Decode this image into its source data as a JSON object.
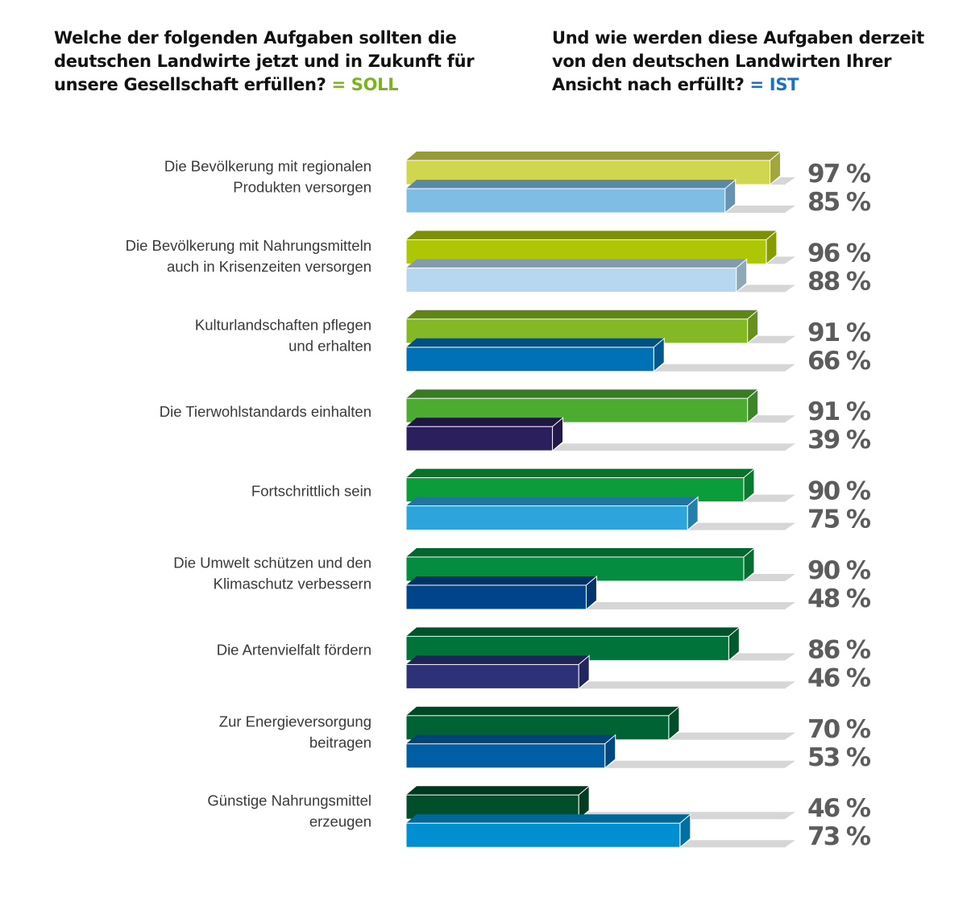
{
  "titles": {
    "left": {
      "text": "Welche der folgenden Aufgaben sollten die deutschen Landwirte jetzt und in Zukunft für unsere Gesellschaft erfüllen?",
      "tag": "= SOLL"
    },
    "right": {
      "text": "Und wie werden diese Aufgaben derzeit von den deutschen Landwirten Ihrer Ansicht nach erfüllt?",
      "tag": "= IST"
    }
  },
  "colors": {
    "soll_tag": "#7ab51d",
    "ist_tag": "#1a73c2",
    "value_label": "#5c5c5c",
    "shadow": "#d6d6d6"
  },
  "chart_data": {
    "type": "bar",
    "orientation": "horizontal",
    "title": "",
    "xlabel": "",
    "ylabel": "",
    "xlim": [
      0,
      100
    ],
    "unit": "%",
    "grid": false,
    "categories": [
      [
        "Die Bevölkerung mit regionalen",
        "Produkten versorgen"
      ],
      [
        "Die Bevölkerung mit Nahrungsmitteln",
        "auch in Krisenzeiten versorgen"
      ],
      [
        "Kulturlandschaften pflegen",
        "und erhalten"
      ],
      [
        "Die Tierwohlstandards einhalten"
      ],
      [
        "Fortschrittlich sein"
      ],
      [
        "Die Umwelt schützen und den",
        "Klimaschutz verbessern"
      ],
      [
        "Die Artenvielfalt fördern"
      ],
      [
        "Zur Energieversorgung",
        "beitragen"
      ],
      [
        "Günstige Nahrungsmittel",
        "erzeugen"
      ]
    ],
    "series": [
      {
        "name": "SOLL",
        "values": [
          97,
          96,
          91,
          91,
          90,
          90,
          86,
          70,
          46
        ],
        "labels": [
          "97 %",
          "96 %",
          "91 %",
          "91 %",
          "90 %",
          "90 %",
          "86 %",
          "70 %",
          "46 %"
        ],
        "colors": [
          "#d0d64e",
          "#adc705",
          "#84b824",
          "#4eab32",
          "#0c9d3b",
          "#048d40",
          "#00733a",
          "#006334",
          "#004e2b"
        ]
      },
      {
        "name": "IST",
        "values": [
          85,
          88,
          66,
          39,
          75,
          48,
          46,
          53,
          73
        ],
        "labels": [
          "85 %",
          "88 %",
          "66 %",
          "39 %",
          "75 %",
          "48 %",
          "46 %",
          "53 %",
          "73 %"
        ],
        "colors": [
          "#80bde5",
          "#b6d7ef",
          "#0071b6",
          "#2c1f5e",
          "#2da4db",
          "#00448b",
          "#2c3178",
          "#005ea4",
          "#0090d1"
        ]
      }
    ]
  }
}
